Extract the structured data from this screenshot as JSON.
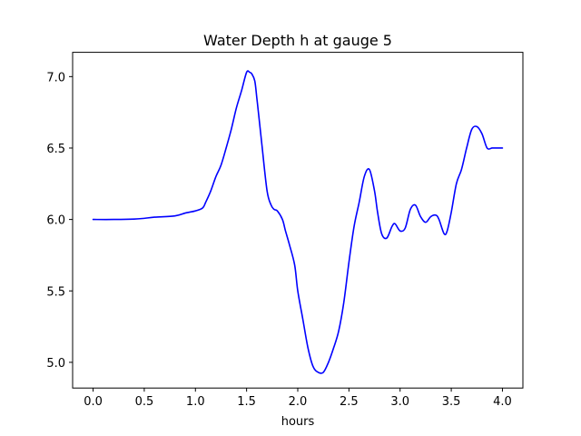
{
  "chart_data": {
    "type": "line",
    "title": "Water Depth h at gauge 5",
    "xlabel": "hours",
    "ylabel": "",
    "xlim": [
      -0.2,
      4.2
    ],
    "ylim": [
      4.82,
      7.17
    ],
    "grid": false,
    "legend": "none",
    "xticks": [
      0.0,
      0.5,
      1.0,
      1.5,
      2.0,
      2.5,
      3.0,
      3.5,
      4.0
    ],
    "xtick_labels": [
      "0.0",
      "0.5",
      "1.0",
      "1.5",
      "2.0",
      "2.5",
      "3.0",
      "3.5",
      "4.0"
    ],
    "yticks": [
      5.0,
      5.5,
      6.0,
      6.5,
      7.0
    ],
    "ytick_labels": [
      "5.0",
      "5.5",
      "6.0",
      "6.5",
      "7.0"
    ],
    "series": [
      {
        "color": "#0000ff",
        "x": [
          0.0,
          0.2,
          0.4,
          0.5,
          0.6,
          0.8,
          0.9,
          1.0,
          1.07,
          1.1,
          1.15,
          1.2,
          1.25,
          1.3,
          1.35,
          1.4,
          1.45,
          1.5,
          1.53,
          1.55,
          1.58,
          1.6,
          1.62,
          1.65,
          1.7,
          1.74,
          1.77,
          1.8,
          1.85,
          1.88,
          1.92,
          1.97,
          2.0,
          2.05,
          2.1,
          2.15,
          2.2,
          2.25,
          2.3,
          2.35,
          2.4,
          2.45,
          2.5,
          2.55,
          2.6,
          2.65,
          2.7,
          2.75,
          2.78,
          2.82,
          2.87,
          2.92,
          2.95,
          3.0,
          3.05,
          3.1,
          3.15,
          3.2,
          3.25,
          3.3,
          3.35,
          3.38,
          3.43,
          3.46,
          3.5,
          3.55,
          3.6,
          3.65,
          3.7,
          3.75,
          3.8,
          3.85,
          3.9,
          3.95,
          4.0
        ],
        "y": [
          6.0,
          6.0,
          6.003,
          6.008,
          6.016,
          6.025,
          6.045,
          6.06,
          6.08,
          6.12,
          6.2,
          6.3,
          6.38,
          6.5,
          6.63,
          6.78,
          6.9,
          7.03,
          7.03,
          7.02,
          6.97,
          6.85,
          6.72,
          6.52,
          6.2,
          6.1,
          6.07,
          6.06,
          6.0,
          5.92,
          5.82,
          5.68,
          5.5,
          5.3,
          5.1,
          4.97,
          4.93,
          4.93,
          5.0,
          5.1,
          5.22,
          5.42,
          5.7,
          5.95,
          6.12,
          6.3,
          6.35,
          6.2,
          6.05,
          5.9,
          5.87,
          5.95,
          5.97,
          5.92,
          5.94,
          6.07,
          6.1,
          6.02,
          5.98,
          6.02,
          6.03,
          6.0,
          5.9,
          5.92,
          6.05,
          6.25,
          6.35,
          6.5,
          6.63,
          6.65,
          6.6,
          6.5,
          6.5,
          6.5,
          6.5
        ]
      }
    ]
  }
}
